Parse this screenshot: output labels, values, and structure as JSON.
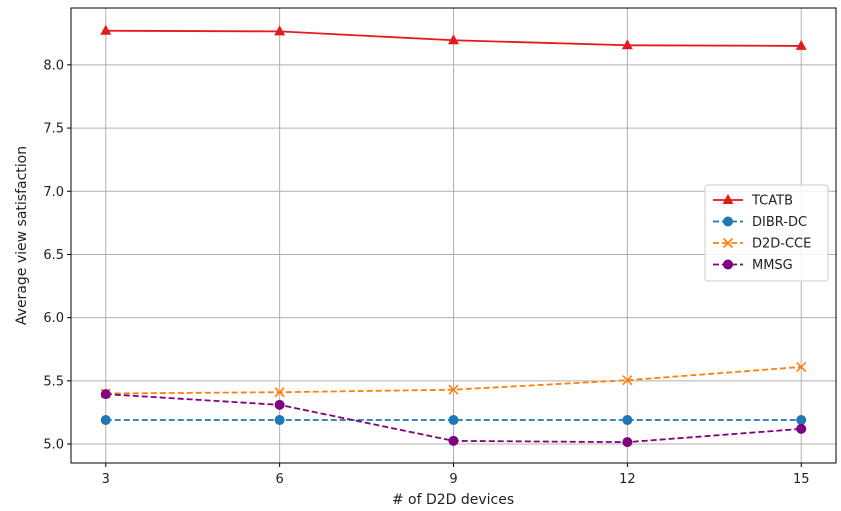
{
  "chart_data": {
    "type": "line",
    "xlabel": "# of D2D devices",
    "ylabel": "Average view satisfaction",
    "x": [
      3,
      6,
      9,
      12,
      15
    ],
    "x_ticks": [
      "3",
      "6",
      "9",
      "12",
      "15"
    ],
    "xlim": [
      2.4,
      15.6
    ],
    "ylim": [
      4.85,
      8.45
    ],
    "y_ticks": [
      "5.0",
      "5.5",
      "6.0",
      "6.5",
      "7.0",
      "7.5",
      "8.0"
    ],
    "grid": true,
    "legend_position": "center-right",
    "series": [
      {
        "name": "TCATB",
        "values": [
          8.27,
          8.265,
          8.195,
          8.155,
          8.15
        ],
        "color": "#e41a1c",
        "marker": "triangle",
        "dash": "solid"
      },
      {
        "name": "DIBR-DC",
        "values": [
          5.19,
          5.19,
          5.19,
          5.19,
          5.19
        ],
        "color": "#1f77b4",
        "marker": "circle",
        "dash": "dashed"
      },
      {
        "name": "D2D-CCE",
        "values": [
          5.4,
          5.41,
          5.43,
          5.505,
          5.61
        ],
        "color": "#ff7f0e",
        "marker": "x",
        "dash": "dashed"
      },
      {
        "name": "MMSG",
        "values": [
          5.395,
          5.31,
          5.025,
          5.015,
          5.12
        ],
        "color": "#800080",
        "marker": "circle",
        "dash": "dashed"
      }
    ]
  }
}
